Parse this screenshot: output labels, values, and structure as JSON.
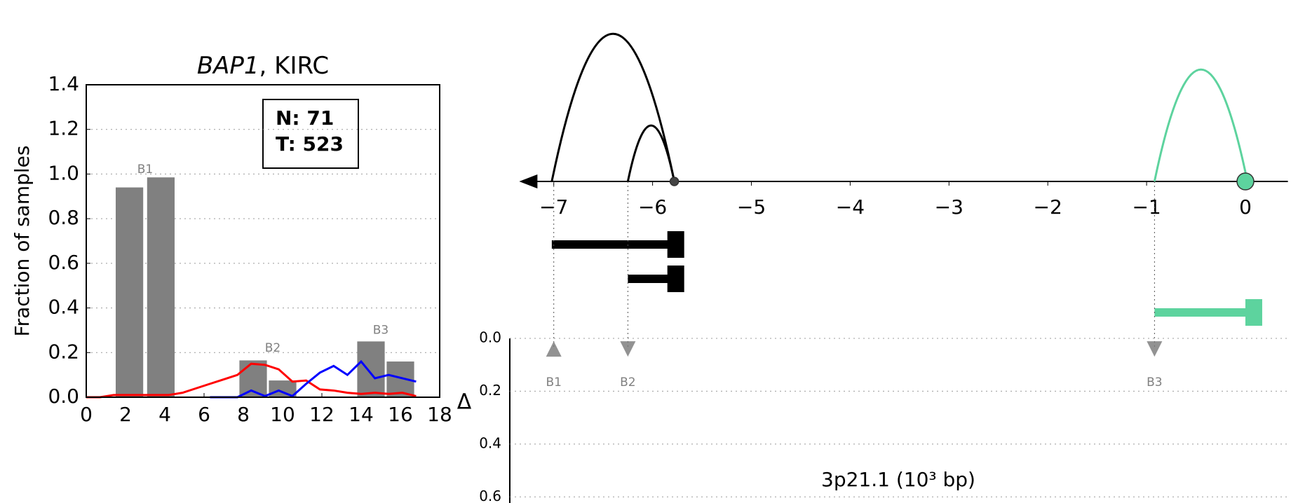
{
  "chart_data": [
    {
      "type": "bar",
      "title": [
        "BAP1",
        ", KIRC"
      ],
      "ylabel": "Fraction of samples",
      "annotation": [
        "N: 71",
        "T: 523"
      ],
      "bars": {
        "x": [
          2.2,
          3.8,
          8.5,
          10,
          14.5,
          16
        ],
        "values": [
          0.94,
          0.985,
          0.165,
          0.075,
          0.25,
          0.16
        ],
        "width": 1.4,
        "color": "#808080"
      },
      "bar_labels": [
        {
          "text": "B1",
          "x": 3,
          "y": 1.02
        },
        {
          "text": "B2",
          "x": 9.5,
          "y": 0.22
        },
        {
          "text": "B3",
          "x": 15,
          "y": 0.3
        }
      ],
      "lines": {
        "x": [
          0,
          0.7,
          1.4,
          2.1,
          2.8,
          3.5,
          4.2,
          4.9,
          5.6,
          6.3,
          7.0,
          7.7,
          8.4,
          9.1,
          9.8,
          10.5,
          11.2,
          11.9,
          12.6,
          13.3,
          14.0,
          14.7,
          15.4,
          16.1,
          16.8
        ],
        "series": [
          {
            "color": "#ff0000",
            "values": [
              0,
              0,
              0.01,
              0.01,
              0.01,
              0.01,
              0.01,
              0.02,
              0.04,
              0.06,
              0.08,
              0.1,
              0.15,
              0.145,
              0.125,
              0.07,
              0.075,
              0.035,
              0.03,
              0.02,
              0.015,
              0.02,
              0.015,
              0.02,
              0.005
            ]
          },
          {
            "color": "#0000ff",
            "values": [
              null,
              null,
              null,
              null,
              null,
              null,
              null,
              null,
              null,
              0,
              0,
              0,
              0.03,
              0.005,
              0.03,
              0.005,
              0.06,
              0.11,
              0.14,
              0.1,
              0.16,
              0.085,
              0.1,
              0.085,
              0.07
            ]
          }
        ]
      },
      "xlim": [
        0,
        18
      ],
      "xticks": [
        0,
        2,
        4,
        6,
        8,
        10,
        12,
        14,
        16,
        18
      ],
      "ylim": [
        0,
        1.4
      ],
      "yticks": [
        {
          "value": 0,
          "label": "0.0"
        },
        0.2,
        0.4,
        0.6,
        0.8,
        {
          "value": 1,
          "label": "1.0"
        },
        1.2,
        1.4
      ],
      "grid": true
    },
    {
      "type": "arc",
      "xlim": [
        -7.35,
        0.43
      ],
      "xticks": [
        {
          "value": -7,
          "label": "−7"
        },
        {
          "value": -6,
          "label": "−6"
        },
        {
          "value": -5,
          "label": "−5"
        },
        {
          "value": -4,
          "label": "−4"
        },
        {
          "value": -3,
          "label": "−3"
        },
        {
          "value": -2,
          "label": "−2"
        },
        {
          "value": -1,
          "label": "−1"
        },
        0
      ],
      "arcs": [
        {
          "start": -7.02,
          "end": -5.78,
          "color": "#000000"
        },
        {
          "start": -6.25,
          "end": -5.78,
          "color": "#000000"
        },
        {
          "start": -0.92,
          "end": 0.02,
          "color": "#5dd39e"
        }
      ],
      "points": [
        {
          "x": -5.78,
          "color": "#444444"
        },
        {
          "x": 0,
          "color": "#5dd39e"
        }
      ],
      "transcripts": [
        {
          "start": -7.02,
          "end": -5.68,
          "color": "#000000"
        },
        {
          "start": -6.25,
          "end": -5.68,
          "color": "#000000"
        },
        {
          "start": -0.92,
          "end": 0.17,
          "color": "#5dd39e"
        }
      ],
      "delta": {
        "ylabel": "Δ",
        "ylim": [
          0,
          0.7
        ],
        "yticks": [
          {
            "value": 0,
            "label": "0.0"
          },
          0.2,
          0.4,
          0.6
        ],
        "grid": true,
        "markers": [
          {
            "label": "B1",
            "x": -7.0,
            "y": 0.04,
            "direction": "up"
          },
          {
            "label": "B2",
            "x": -6.25,
            "y": 0.04,
            "direction": "down"
          },
          {
            "label": "B3",
            "x": -0.92,
            "y": 0.04,
            "direction": "down"
          }
        ]
      },
      "xlabel": "3p21.1 (10³ bp)"
    }
  ]
}
